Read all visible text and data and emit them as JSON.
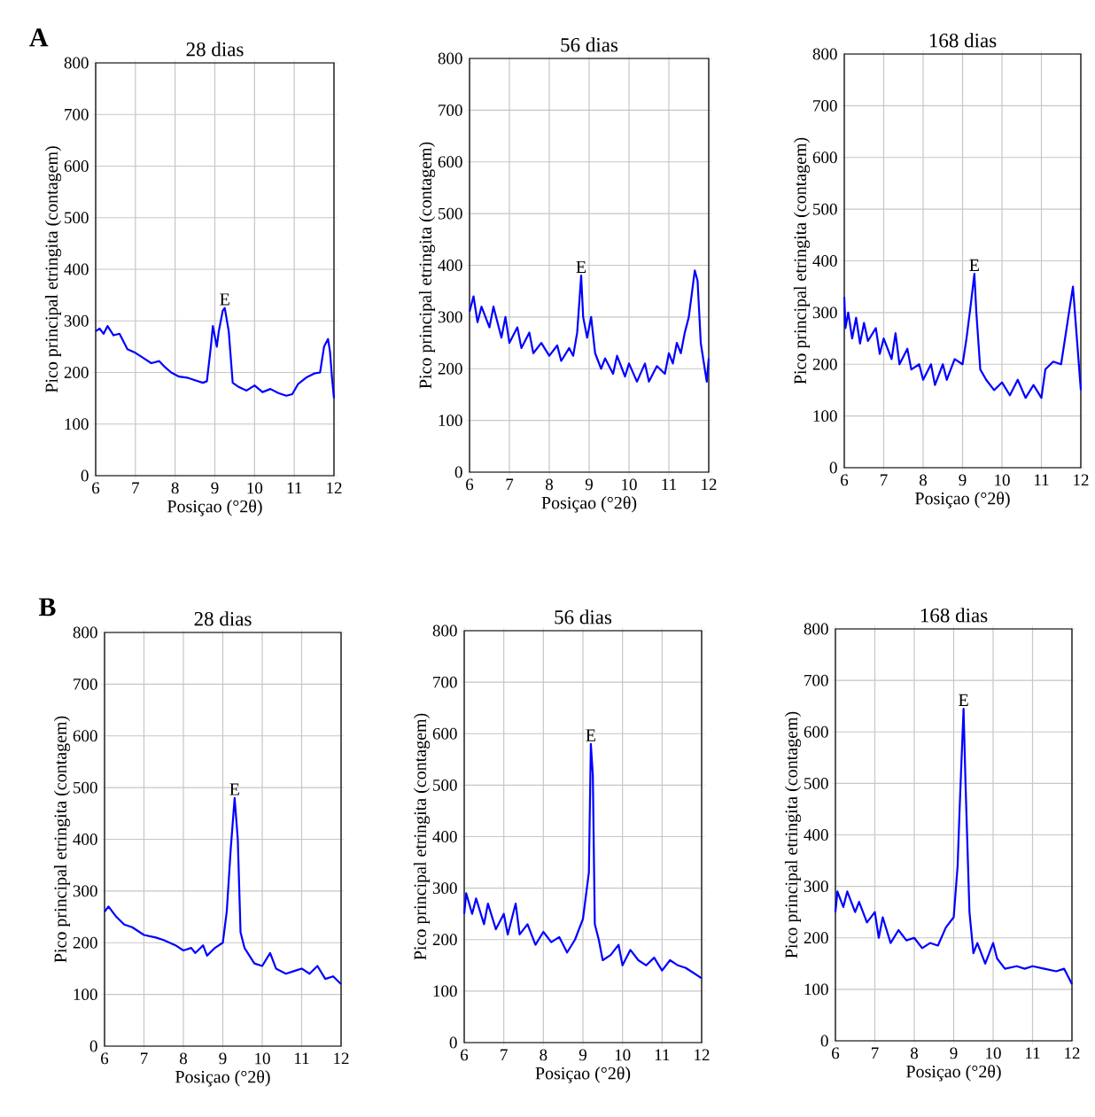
{
  "chart_data": [
    {
      "type": "line",
      "title": "28 dias",
      "xlabel": "Posiçao (°2θ)",
      "ylabel": "Pico principal etringita  (contagem)",
      "annotations": [
        "A",
        {
          "text": "E",
          "x": 9.25,
          "y": 325
        }
      ],
      "xlim": [
        6,
        12
      ],
      "ylim": [
        0,
        800
      ],
      "xticks": [
        6,
        7,
        8,
        9,
        10,
        11,
        12
      ],
      "yticks": [
        0,
        100,
        200,
        300,
        400,
        500,
        600,
        700,
        800
      ],
      "grid": true,
      "x": [
        6,
        6.1,
        6.2,
        6.3,
        6.45,
        6.6,
        6.8,
        7,
        7.2,
        7.4,
        7.6,
        7.75,
        7.9,
        8.1,
        8.3,
        8.5,
        8.7,
        8.8,
        8.9,
        8.95,
        9.05,
        9.1,
        9.2,
        9.25,
        9.35,
        9.45,
        9.6,
        9.8,
        10,
        10.2,
        10.4,
        10.6,
        10.8,
        10.95,
        11.1,
        11.3,
        11.5,
        11.65,
        11.75,
        11.85,
        11.9,
        11.95,
        12
      ],
      "series": [
        {
          "color": "#0000ff",
          "values": [
            280,
            285,
            275,
            290,
            272,
            275,
            245,
            238,
            228,
            218,
            222,
            210,
            200,
            192,
            190,
            185,
            180,
            183,
            250,
            290,
            250,
            280,
            320,
            325,
            280,
            180,
            172,
            165,
            175,
            162,
            168,
            160,
            155,
            158,
            178,
            190,
            198,
            200,
            250,
            265,
            240,
            190,
            150
          ]
        }
      ]
    },
    {
      "type": "line",
      "title": "56 dias",
      "xlabel": "Posiçao (°2θ)",
      "ylabel": "Pico principal etringita  (contagem)",
      "annotations": [
        {
          "text": "E",
          "x": 8.8,
          "y": 380
        }
      ],
      "xlim": [
        6,
        12
      ],
      "ylim": [
        0,
        800
      ],
      "xticks": [
        6,
        7,
        8,
        9,
        10,
        11,
        12
      ],
      "yticks": [
        0,
        100,
        200,
        300,
        400,
        500,
        600,
        700,
        800
      ],
      "grid": true,
      "x": [
        6,
        6.1,
        6.2,
        6.3,
        6.5,
        6.6,
        6.8,
        6.9,
        7.0,
        7.2,
        7.3,
        7.5,
        7.6,
        7.8,
        8.0,
        8.2,
        8.3,
        8.5,
        8.6,
        8.7,
        8.8,
        8.85,
        8.95,
        9.05,
        9.15,
        9.3,
        9.4,
        9.6,
        9.7,
        9.9,
        10.0,
        10.2,
        10.4,
        10.5,
        10.7,
        10.9,
        11.0,
        11.1,
        11.2,
        11.3,
        11.4,
        11.5,
        11.6,
        11.65,
        11.72,
        11.8,
        11.9,
        11.95,
        12
      ],
      "series": [
        {
          "color": "#0000ff",
          "values": [
            310,
            340,
            290,
            320,
            280,
            320,
            260,
            300,
            250,
            280,
            240,
            270,
            230,
            250,
            225,
            245,
            215,
            240,
            225,
            270,
            380,
            300,
            260,
            300,
            230,
            200,
            220,
            190,
            225,
            185,
            210,
            175,
            210,
            175,
            205,
            190,
            230,
            210,
            250,
            230,
            270,
            300,
            360,
            390,
            370,
            250,
            200,
            175,
            220
          ]
        }
      ]
    },
    {
      "type": "line",
      "title": "168 dias",
      "xlabel": "Posiçao (°2θ)",
      "ylabel": "Pico principal etringita  (contagem)",
      "annotations": [
        {
          "text": "E",
          "x": 9.3,
          "y": 375
        }
      ],
      "xlim": [
        6,
        12
      ],
      "ylim": [
        0,
        800
      ],
      "xticks": [
        6,
        7,
        8,
        9,
        10,
        11,
        12
      ],
      "yticks": [
        0,
        100,
        200,
        300,
        400,
        500,
        600,
        700,
        800
      ],
      "grid": true,
      "x": [
        6,
        6.03,
        6.1,
        6.2,
        6.3,
        6.4,
        6.5,
        6.6,
        6.8,
        6.9,
        7.0,
        7.2,
        7.3,
        7.4,
        7.6,
        7.7,
        7.9,
        8.0,
        8.2,
        8.3,
        8.5,
        8.6,
        8.8,
        9.0,
        9.1,
        9.2,
        9.3,
        9.35,
        9.45,
        9.6,
        9.8,
        10.0,
        10.2,
        10.4,
        10.6,
        10.8,
        11.0,
        11.1,
        11.3,
        11.5,
        11.7,
        11.8,
        11.9,
        12
      ],
      "series": [
        {
          "color": "#0000ff",
          "values": [
            330,
            270,
            300,
            250,
            290,
            240,
            280,
            245,
            270,
            220,
            250,
            210,
            260,
            200,
            230,
            190,
            200,
            170,
            200,
            160,
            200,
            170,
            210,
            200,
            250,
            310,
            375,
            300,
            190,
            170,
            150,
            165,
            140,
            170,
            135,
            160,
            135,
            190,
            205,
            200,
            300,
            350,
            250,
            150
          ]
        }
      ]
    },
    {
      "type": "line",
      "title": "28 dias",
      "xlabel": "Posiçao (°2θ)",
      "ylabel": "Pico principal etringita  (contagem)",
      "annotations": [
        "B",
        {
          "text": "E",
          "x": 9.3,
          "y": 480
        }
      ],
      "xlim": [
        6,
        12
      ],
      "ylim": [
        0,
        800
      ],
      "xticks": [
        6,
        7,
        8,
        9,
        10,
        11,
        12
      ],
      "yticks": [
        0,
        100,
        200,
        300,
        400,
        500,
        600,
        700,
        800
      ],
      "grid": true,
      "x": [
        6,
        6.1,
        6.3,
        6.5,
        6.7,
        7.0,
        7.3,
        7.5,
        7.8,
        8.0,
        8.2,
        8.3,
        8.5,
        8.6,
        8.8,
        9.0,
        9.1,
        9.2,
        9.3,
        9.38,
        9.45,
        9.55,
        9.8,
        10.0,
        10.2,
        10.35,
        10.6,
        10.8,
        11.0,
        11.2,
        11.4,
        11.6,
        11.8,
        12
      ],
      "series": [
        {
          "color": "#0000ff",
          "values": [
            260,
            270,
            250,
            235,
            230,
            215,
            210,
            205,
            195,
            185,
            190,
            180,
            195,
            175,
            190,
            200,
            260,
            380,
            480,
            400,
            220,
            190,
            160,
            155,
            180,
            150,
            140,
            145,
            150,
            140,
            155,
            130,
            135,
            120
          ]
        }
      ]
    },
    {
      "type": "line",
      "title": "56 dias",
      "xlabel": "Posiçao (°2θ)",
      "ylabel": "Pico principal etringita  (contagem)",
      "annotations": [
        {
          "text": "E",
          "x": 9.2,
          "y": 580
        }
      ],
      "xlim": [
        6,
        12
      ],
      "ylim": [
        0,
        800
      ],
      "xticks": [
        6,
        7,
        8,
        9,
        10,
        11,
        12
      ],
      "yticks": [
        0,
        100,
        200,
        300,
        400,
        500,
        600,
        700,
        800
      ],
      "grid": true,
      "x": [
        6,
        6.05,
        6.2,
        6.3,
        6.5,
        6.6,
        6.8,
        7.0,
        7.1,
        7.3,
        7.4,
        7.6,
        7.8,
        8.0,
        8.2,
        8.4,
        8.6,
        8.8,
        9.0,
        9.1,
        9.15,
        9.2,
        9.25,
        9.3,
        9.4,
        9.5,
        9.7,
        9.9,
        10.0,
        10.2,
        10.4,
        10.6,
        10.8,
        11.0,
        11.2,
        11.4,
        11.6,
        11.8,
        12
      ],
      "series": [
        {
          "color": "#0000ff",
          "values": [
            250,
            290,
            250,
            280,
            230,
            270,
            220,
            250,
            210,
            270,
            210,
            230,
            190,
            215,
            195,
            205,
            175,
            200,
            240,
            300,
            330,
            580,
            520,
            230,
            200,
            160,
            170,
            190,
            150,
            180,
            160,
            150,
            165,
            140,
            160,
            150,
            145,
            135,
            125
          ]
        }
      ]
    },
    {
      "type": "line",
      "title": "168 dias",
      "xlabel": "Posiçao (°2θ)",
      "ylabel": "Pico principal etringita  (contagem)",
      "annotations": [
        {
          "text": "E",
          "x": 9.25,
          "y": 645
        }
      ],
      "xlim": [
        6,
        12
      ],
      "ylim": [
        0,
        800
      ],
      "xticks": [
        6,
        7,
        8,
        9,
        10,
        11,
        12
      ],
      "yticks": [
        0,
        100,
        200,
        300,
        400,
        500,
        600,
        700,
        800
      ],
      "grid": true,
      "x": [
        6,
        6.05,
        6.2,
        6.3,
        6.5,
        6.6,
        6.8,
        7.0,
        7.1,
        7.2,
        7.4,
        7.6,
        7.8,
        8.0,
        8.2,
        8.4,
        8.6,
        8.8,
        9.0,
        9.1,
        9.15,
        9.25,
        9.3,
        9.4,
        9.5,
        9.6,
        9.8,
        10.0,
        10.1,
        10.3,
        10.6,
        10.8,
        11.0,
        11.3,
        11.6,
        11.8,
        12
      ],
      "series": [
        {
          "color": "#0000ff",
          "values": [
            250,
            290,
            260,
            290,
            250,
            270,
            230,
            250,
            200,
            240,
            190,
            215,
            195,
            200,
            180,
            190,
            185,
            220,
            240,
            340,
            450,
            645,
            500,
            250,
            170,
            190,
            150,
            190,
            160,
            140,
            145,
            140,
            145,
            140,
            135,
            140,
            110
          ]
        }
      ]
    }
  ]
}
